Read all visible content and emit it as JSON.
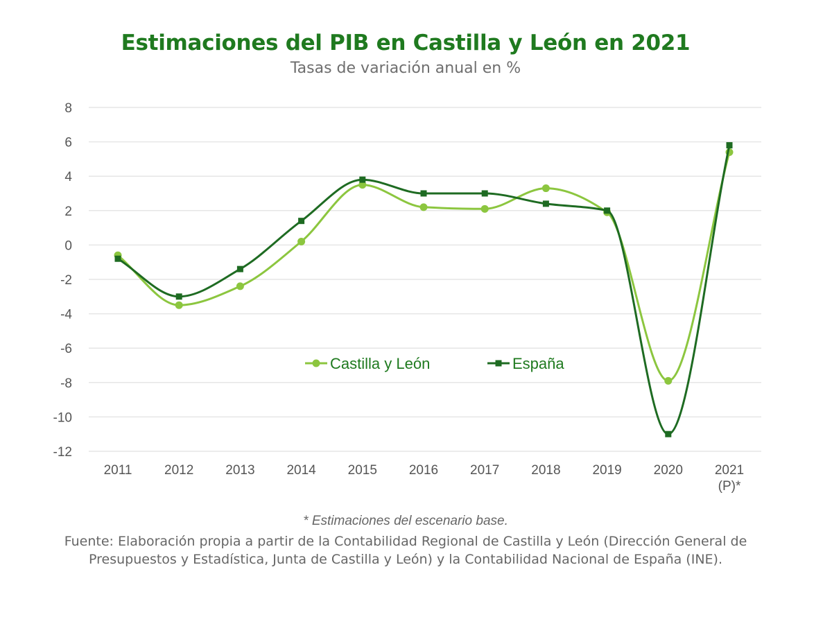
{
  "colors": {
    "title": "#1f7a1f",
    "subtitle": "#6e6e6e",
    "castilla": "#8cc63f",
    "espana": "#1e6b22",
    "grid": "#e6e6e6",
    "text": "#666666"
  },
  "header": {
    "title": "Estimaciones del PIB en Castilla y León en 2021",
    "subtitle": "Tasas de variación anual en %"
  },
  "chart_data": {
    "type": "line",
    "title": "Estimaciones del PIB en Castilla y León en 2021",
    "subtitle": "Tasas de variación anual en %",
    "categories": [
      "2011",
      "2012",
      "2013",
      "2014",
      "2015",
      "2016",
      "2017",
      "2018",
      "2019",
      "2020",
      "2021"
    ],
    "category_labels": [
      [
        "2011"
      ],
      [
        "2012"
      ],
      [
        "2013"
      ],
      [
        "2014"
      ],
      [
        "2015"
      ],
      [
        "2016"
      ],
      [
        "2017"
      ],
      [
        "2018"
      ],
      [
        "2019"
      ],
      [
        "2020"
      ],
      [
        "2021",
        "(P)*"
      ]
    ],
    "yticks": [
      8,
      6,
      4,
      2,
      0,
      -2,
      -4,
      -6,
      -8,
      -10,
      -12
    ],
    "ylim": [
      -12,
      8
    ],
    "grid": true,
    "smooth": true,
    "legend_position": "center",
    "series": [
      {
        "name": "Castilla y León",
        "color": "#8cc63f",
        "values": [
          -0.6,
          -3.5,
          -2.4,
          0.2,
          3.5,
          2.2,
          2.1,
          3.3,
          1.9,
          -7.9,
          5.4
        ]
      },
      {
        "name": "España",
        "color": "#1e6b22",
        "values": [
          -0.8,
          -3.0,
          -1.4,
          1.4,
          3.8,
          3.0,
          3.0,
          2.4,
          2.0,
          -11.0,
          5.8
        ]
      }
    ]
  },
  "footnote": "* Estimaciones del escenario base.",
  "source": "Fuente: Elaboración propia a partir de la Contabilidad Regional de Castilla y León (Dirección General de Presupuestos y Estadística, Junta de Castilla y León) y la Contabilidad Nacional de España (INE)."
}
